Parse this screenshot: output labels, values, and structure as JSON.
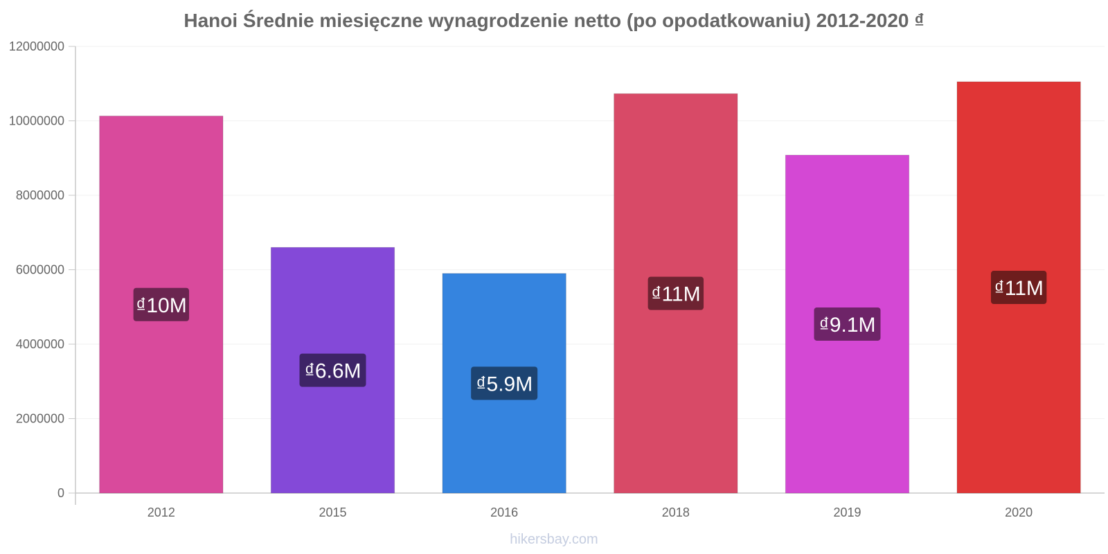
{
  "chart_data": {
    "type": "bar",
    "title": "Hanoi Średnie miesięczne wynagrodzenie netto (po opodatkowaniu) 2012-2020 ₫",
    "categories": [
      "2012",
      "2015",
      "2016",
      "2018",
      "2019",
      "2020"
    ],
    "values": [
      10130000,
      6600000,
      5900000,
      10730000,
      9080000,
      11050000
    ],
    "data_labels": [
      "₫10M",
      "₫6.6M",
      "₫5.9M",
      "₫11M",
      "₫9.1M",
      "₫11M"
    ],
    "y_ticks": [
      "0",
      "2000000",
      "4000000",
      "6000000",
      "8000000",
      "10000000",
      "12000000"
    ],
    "ylim": [
      0,
      12000000
    ],
    "bar_colors": [
      "#d94a9c",
      "#8449d8",
      "#3584df",
      "#d84a67",
      "#d448d4",
      "#e03636"
    ],
    "label_colors": [
      "#6b2550",
      "#3e2467",
      "#1d4472",
      "#6e2332",
      "#6e2468",
      "#6e1d1d"
    ],
    "grid": true,
    "legend": "none"
  },
  "footer": "hikersbay.com"
}
